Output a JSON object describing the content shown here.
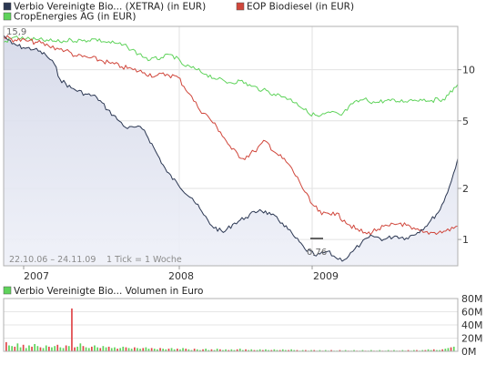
{
  "legend": [
    {
      "label": "Verbio Vereinigte Bio... (XETRA) (in EUR)",
      "color": "#2b3752"
    },
    {
      "label": "EOP Biodiesel (in EUR)",
      "color": "#d0463b"
    },
    {
      "label": "CropEnergies AG (in EUR)",
      "color": "#5fd35b"
    }
  ],
  "volume_legend": {
    "label": "Verbio Vereinigte Bio... Volumen in Euro",
    "color": "#5fd35b"
  },
  "footer_text": {
    "range": "22.10.06 – 24.11.09",
    "tick": "1 Tick = 1 Woche"
  },
  "annotations": {
    "start_value": "15,9",
    "min_value": "0,76"
  },
  "chart_data": [
    {
      "type": "line",
      "scale": "log",
      "x_tick_labels": [
        "2007",
        "2008",
        "2009"
      ],
      "y_tick_labels": [
        "10",
        "5",
        "2",
        "1"
      ],
      "y_ticks": [
        10,
        5,
        2,
        1
      ],
      "ylim": [
        0.7,
        18
      ],
      "x_range": [
        "2006-10-22",
        "2009-11-24"
      ],
      "series": [
        {
          "name": "Verbio Vereinigte Bio... (XETRA) (in EUR)",
          "color": "#2b3752",
          "points": [
            [
              "2006-10-22",
              15.9
            ],
            [
              "2006-11-12",
              14.2
            ],
            [
              "2006-12-10",
              13.5
            ],
            [
              "2007-01-07",
              13.2
            ],
            [
              "2007-02-04",
              12.2
            ],
            [
              "2007-02-25",
              10.8
            ],
            [
              "2007-03-11",
              8.8
            ],
            [
              "2007-04-08",
              7.8
            ],
            [
              "2007-05-13",
              7.2
            ],
            [
              "2007-06-10",
              6.9
            ],
            [
              "2007-07-08",
              5.8
            ],
            [
              "2007-08-05",
              5.0
            ],
            [
              "2007-08-26",
              4.5
            ],
            [
              "2007-09-16",
              4.6
            ],
            [
              "2007-10-07",
              4.4
            ],
            [
              "2007-11-04",
              3.3
            ],
            [
              "2007-12-02",
              2.5
            ],
            [
              "2007-12-30",
              2.1
            ],
            [
              "2008-02-03",
              1.75
            ],
            [
              "2008-03-02",
              1.4
            ],
            [
              "2008-03-23",
              1.2
            ],
            [
              "2008-04-20",
              1.1
            ],
            [
              "2008-05-18",
              1.25
            ],
            [
              "2008-06-15",
              1.35
            ],
            [
              "2008-07-20",
              1.5
            ],
            [
              "2008-08-17",
              1.4
            ],
            [
              "2008-09-14",
              1.25
            ],
            [
              "2008-10-12",
              1.05
            ],
            [
              "2008-11-09",
              0.88
            ],
            [
              "2008-12-07",
              0.8
            ],
            [
              "2009-01-04",
              0.85
            ],
            [
              "2009-01-25",
              0.78
            ],
            [
              "2009-02-15",
              0.76
            ],
            [
              "2009-03-08",
              0.85
            ],
            [
              "2009-03-29",
              0.95
            ],
            [
              "2009-04-26",
              1.05
            ],
            [
              "2009-05-24",
              1.0
            ],
            [
              "2009-06-21",
              1.05
            ],
            [
              "2009-07-19",
              1.02
            ],
            [
              "2009-08-16",
              1.1
            ],
            [
              "2009-09-13",
              1.25
            ],
            [
              "2009-10-11",
              1.5
            ],
            [
              "2009-10-25",
              1.8
            ],
            [
              "2009-11-08",
              2.2
            ],
            [
              "2009-11-24",
              3.0
            ]
          ]
        },
        {
          "name": "EOP Biodiesel (in EUR)",
          "color": "#d0463b",
          "points": [
            [
              "2006-10-22",
              15.6
            ],
            [
              "2006-11-19",
              15.0
            ],
            [
              "2006-12-17",
              14.8
            ],
            [
              "2007-01-14",
              14.5
            ],
            [
              "2007-02-11",
              13.8
            ],
            [
              "2007-03-04",
              13.4
            ],
            [
              "2007-03-25",
              13.0
            ],
            [
              "2007-04-22",
              12.0
            ],
            [
              "2007-05-20",
              11.8
            ],
            [
              "2007-06-17",
              11.4
            ],
            [
              "2007-07-15",
              10.9
            ],
            [
              "2007-08-12",
              10.4
            ],
            [
              "2007-09-09",
              10.0
            ],
            [
              "2007-10-07",
              9.6
            ],
            [
              "2007-11-04",
              9.2
            ],
            [
              "2007-12-02",
              9.4
            ],
            [
              "2007-12-30",
              9.0
            ],
            [
              "2008-01-27",
              7.2
            ],
            [
              "2008-02-17",
              6.0
            ],
            [
              "2008-03-16",
              5.2
            ],
            [
              "2008-04-13",
              4.3
            ],
            [
              "2008-05-11",
              3.4
            ],
            [
              "2008-06-08",
              3.0
            ],
            [
              "2008-07-06",
              3.3
            ],
            [
              "2008-08-03",
              3.8
            ],
            [
              "2008-08-31",
              3.2
            ],
            [
              "2008-09-28",
              2.8
            ],
            [
              "2008-10-26",
              2.2
            ],
            [
              "2008-11-23",
              1.65
            ],
            [
              "2008-12-21",
              1.4
            ],
            [
              "2009-01-18",
              1.45
            ],
            [
              "2009-02-15",
              1.3
            ],
            [
              "2009-03-15",
              1.15
            ],
            [
              "2009-04-12",
              1.08
            ],
            [
              "2009-05-10",
              1.15
            ],
            [
              "2009-06-07",
              1.2
            ],
            [
              "2009-07-05",
              1.25
            ],
            [
              "2009-08-02",
              1.15
            ],
            [
              "2009-08-30",
              1.1
            ],
            [
              "2009-09-27",
              1.1
            ],
            [
              "2009-10-25",
              1.12
            ],
            [
              "2009-11-24",
              1.2
            ]
          ]
        },
        {
          "name": "CropEnergies AG (in EUR)",
          "color": "#5fd35b",
          "points": [
            [
              "2006-10-22",
              14.5
            ],
            [
              "2006-11-19",
              15.6
            ],
            [
              "2006-12-17",
              15.2
            ],
            [
              "2007-01-14",
              15.0
            ],
            [
              "2007-02-11",
              14.8
            ],
            [
              "2007-03-11",
              14.6
            ],
            [
              "2007-04-08",
              15.0
            ],
            [
              "2007-05-06",
              14.8
            ],
            [
              "2007-06-03",
              15.2
            ],
            [
              "2007-07-01",
              14.6
            ],
            [
              "2007-07-29",
              14.3
            ],
            [
              "2007-08-26",
              13.6
            ],
            [
              "2007-09-23",
              12.4
            ],
            [
              "2007-10-21",
              11.4
            ],
            [
              "2007-11-18",
              11.8
            ],
            [
              "2007-12-16",
              12.2
            ],
            [
              "2008-01-13",
              10.6
            ],
            [
              "2008-02-10",
              10.1
            ],
            [
              "2008-03-09",
              9.4
            ],
            [
              "2008-04-06",
              8.8
            ],
            [
              "2008-05-04",
              8.4
            ],
            [
              "2008-06-01",
              8.6
            ],
            [
              "2008-06-29",
              8.0
            ],
            [
              "2008-07-27",
              7.6
            ],
            [
              "2008-08-24",
              7.2
            ],
            [
              "2008-09-21",
              6.9
            ],
            [
              "2008-10-19",
              6.4
            ],
            [
              "2008-11-16",
              5.6
            ],
            [
              "2008-12-14",
              5.3
            ],
            [
              "2009-01-11",
              5.6
            ],
            [
              "2009-02-08",
              5.4
            ],
            [
              "2009-03-08",
              6.3
            ],
            [
              "2009-04-05",
              6.7
            ],
            [
              "2009-05-03",
              6.4
            ],
            [
              "2009-05-31",
              6.6
            ],
            [
              "2009-06-28",
              6.5
            ],
            [
              "2009-07-26",
              6.6
            ],
            [
              "2009-08-23",
              6.7
            ],
            [
              "2009-09-20",
              6.6
            ],
            [
              "2009-10-18",
              6.7
            ],
            [
              "2009-11-01",
              7.1
            ],
            [
              "2009-11-24",
              8.2
            ]
          ]
        }
      ]
    },
    {
      "type": "bar",
      "name": "Verbio Vereinigte Bio... Volumen in Euro",
      "y_tick_labels": [
        "80M",
        "60M",
        "40M",
        "20M",
        "0M"
      ],
      "ylim": [
        0,
        80
      ],
      "unit": "M EUR",
      "values": [
        14,
        9,
        8,
        7,
        12,
        6,
        10,
        5,
        9,
        7,
        11,
        8,
        6,
        5,
        9,
        7,
        6,
        8,
        10,
        6,
        5,
        9,
        8,
        65,
        6,
        7,
        12,
        8,
        6,
        5,
        7,
        9,
        6,
        5,
        8,
        6,
        7,
        5,
        6,
        4,
        5,
        7,
        6,
        5,
        4,
        6,
        5,
        4,
        5,
        6,
        4,
        5,
        4,
        3,
        5,
        4,
        3,
        4,
        5,
        3,
        4,
        3,
        5,
        4,
        3,
        2,
        4,
        3,
        2,
        3,
        4,
        2,
        3,
        2,
        4,
        3,
        2,
        3,
        2,
        3,
        2,
        3,
        4,
        2,
        3,
        2,
        3,
        2,
        2,
        3,
        2,
        3,
        2,
        2,
        3,
        2,
        2,
        3,
        2,
        2,
        3,
        2,
        2,
        1,
        2,
        2,
        1,
        2,
        2,
        1,
        2,
        1,
        2,
        1,
        2,
        1,
        1,
        2,
        1,
        2,
        1,
        1,
        2,
        1,
        1,
        2,
        1,
        1,
        2,
        1,
        1,
        2,
        1,
        1,
        2,
        1,
        2,
        1,
        1,
        2,
        1,
        2,
        1,
        2,
        2,
        1,
        2,
        2,
        3,
        2,
        3,
        2,
        2,
        3,
        4,
        5,
        6,
        7
      ]
    }
  ]
}
